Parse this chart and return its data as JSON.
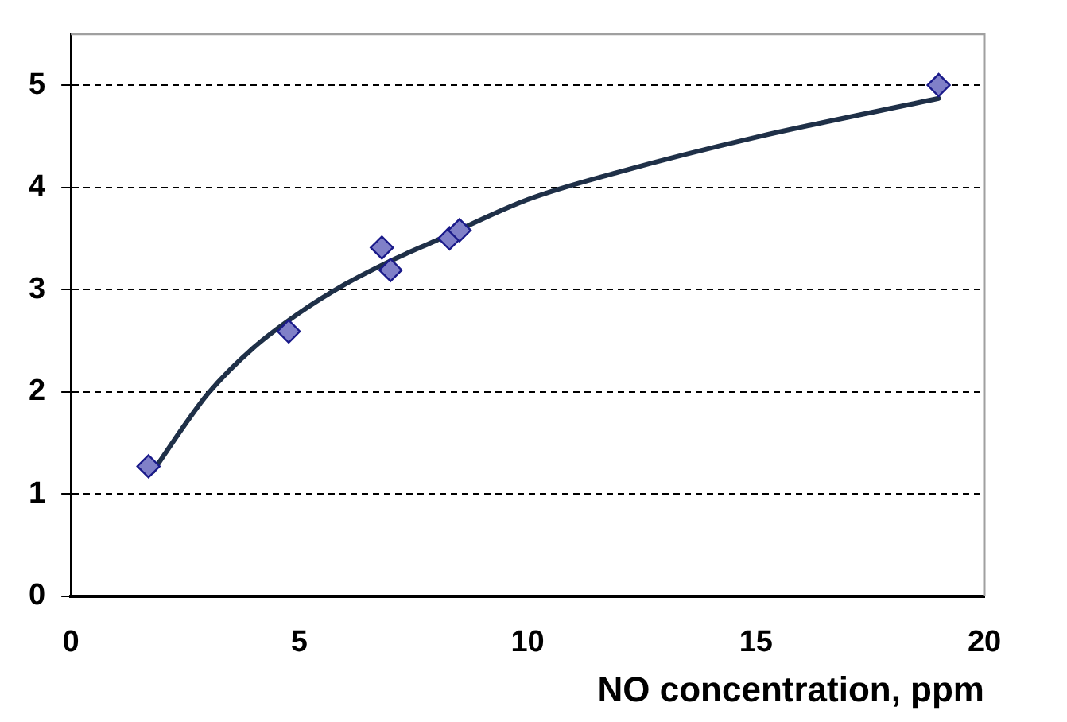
{
  "chart_data": {
    "type": "scatter",
    "xlabel": "NO concentration, ppm",
    "xlim": [
      0,
      20
    ],
    "xticks": [
      0,
      5,
      10,
      15,
      20
    ],
    "ylim": [
      0,
      5.5
    ],
    "yticks": [
      0,
      1,
      2,
      3,
      4,
      5
    ],
    "grid": "y",
    "marker": "diamond",
    "legend": false,
    "series": [
      {
        "color": "#8080c8",
        "x": [
          1.7,
          4.77,
          6.81,
          7.0,
          8.29,
          8.51,
          19.0
        ],
        "values": [
          1.27,
          2.59,
          3.41,
          3.19,
          3.5,
          3.58,
          5.0
        ]
      },
      {
        "type": "line",
        "color": "#1f3048",
        "marker": "none",
        "x": [
          1.8,
          2.5,
          3,
          4,
          5,
          6,
          7,
          8,
          10,
          12,
          15,
          19
        ],
        "values": [
          1.22,
          1.68,
          1.98,
          2.43,
          2.77,
          3.05,
          3.28,
          3.48,
          3.88,
          4.15,
          4.49,
          4.87
        ]
      }
    ]
  }
}
